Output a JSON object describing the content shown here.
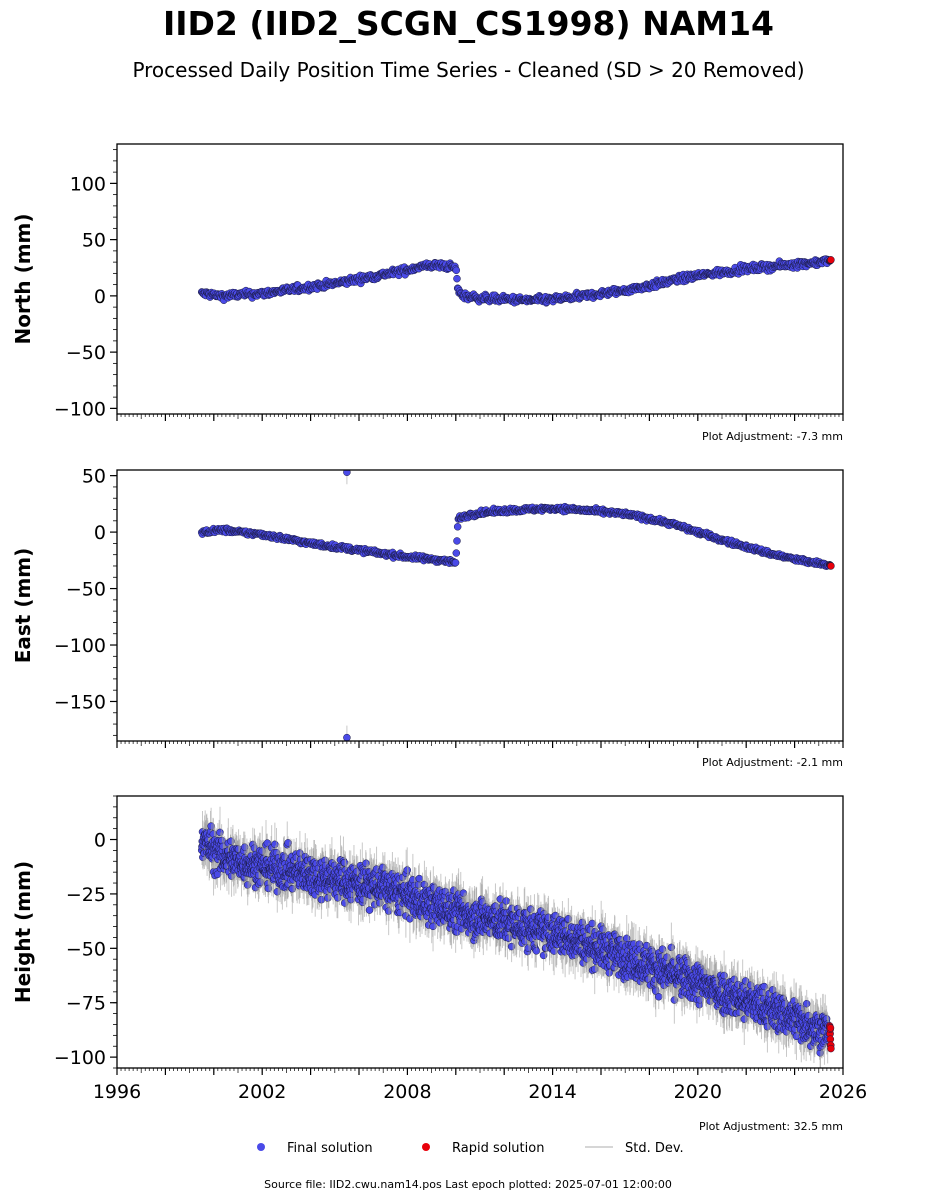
{
  "title": "IID2 (IID2_SCGN_CS1998) NAM14",
  "subtitle": "Processed Daily Position Time Series - Cleaned (SD > 20 Removed)",
  "colors": {
    "final": "#4a4ae8",
    "rapid": "#e8000b",
    "stddev": "#c8c8c8",
    "edge": "#1a1a40"
  },
  "chart_data": [
    {
      "type": "scatter",
      "ylabel": "North (mm)",
      "ylim": [
        -105,
        135
      ],
      "yticks": [
        100,
        50,
        0,
        -50,
        -100
      ],
      "ytick_labels": [
        "100",
        "50",
        "0",
        "−50",
        "−100"
      ],
      "xlim": [
        1996,
        2026
      ],
      "adjustment": "Plot Adjustment: -7.3 mm",
      "segments": [
        {
          "series": "Final solution",
          "x": [
            1999.5,
            2000.0,
            2000.1,
            2000.4,
            2001.0,
            2002.0,
            2003.0,
            2004.0,
            2005.0,
            2006.0,
            2007.0,
            2008.0,
            2008.5,
            2009.0,
            2009.5,
            2010.0,
            2010.1,
            2010.3,
            2011.0,
            2012.0,
            2013.0,
            2014.0,
            2015.0,
            2016.0,
            2017.0,
            2018.0,
            2019.0,
            2020.0,
            2021.0,
            2022.0,
            2023.0,
            2024.0,
            2025.0,
            2025.4
          ],
          "y": [
            2,
            1,
            0,
            0,
            1,
            2,
            5,
            8,
            11,
            15,
            19,
            23,
            26,
            27,
            27,
            25,
            4,
            0,
            -2,
            -3,
            -4,
            -3,
            -1,
            2,
            5,
            9,
            14,
            18,
            21,
            24,
            26,
            28,
            30,
            31
          ],
          "spread": 3
        },
        {
          "series": "Rapid solution",
          "x": [
            2025.45,
            2025.5
          ],
          "y": [
            31,
            32
          ],
          "spread": 0
        }
      ]
    },
    {
      "type": "scatter",
      "ylabel": "East (mm)",
      "ylim": [
        -185,
        55
      ],
      "yticks": [
        50,
        0,
        -50,
        -100,
        -150
      ],
      "ytick_labels": [
        "50",
        "0",
        "−50",
        "−100",
        "−150"
      ],
      "xlim": [
        1996,
        2026
      ],
      "adjustment": "Plot Adjustment: -2.1 mm",
      "segments": [
        {
          "series": "Final solution",
          "x": [
            1999.5,
            2000.0,
            2000.4,
            2001.0,
            2002.0,
            2003.0,
            2004.0,
            2005.0,
            2006.0,
            2007.0,
            2008.0,
            2009.0,
            2009.5,
            2010.0,
            2010.1,
            2010.5,
            2011.0,
            2012.0,
            2013.0,
            2014.0,
            2015.0,
            2016.0,
            2017.0,
            2018.0,
            2019.0,
            2020.0,
            2021.0,
            2022.0,
            2023.0,
            2024.0,
            2025.0,
            2025.4
          ],
          "y": [
            0,
            1,
            2,
            0,
            -2,
            -6,
            -10,
            -13,
            -16,
            -19,
            -22,
            -24,
            -25,
            -27,
            12,
            15,
            17,
            19,
            20,
            21,
            20,
            18,
            16,
            12,
            7,
            0,
            -7,
            -13,
            -19,
            -24,
            -28,
            -29
          ],
          "spread": 2
        },
        {
          "series": "Final solution",
          "x": [
            2005.5,
            2005.5
          ],
          "y": [
            53,
            -182
          ],
          "spread": 0
        },
        {
          "series": "Rapid solution",
          "x": [
            2025.45,
            2025.5
          ],
          "y": [
            -29,
            -30
          ],
          "spread": 0
        }
      ]
    },
    {
      "type": "scatter",
      "ylabel": "Height (mm)",
      "ylim": [
        -105,
        20
      ],
      "yticks": [
        0,
        -25,
        -50,
        -75,
        -100
      ],
      "ytick_labels": [
        "0",
        "−25",
        "−50",
        "−75",
        "−100"
      ],
      "xlim": [
        1996,
        2026
      ],
      "xticks": [
        1996,
        2002,
        2008,
        2014,
        2020,
        2026
      ],
      "xtick_labels": [
        "1996",
        "2002",
        "2008",
        "2014",
        "2020",
        "2026"
      ],
      "adjustment": "Plot Adjustment: 32.5 mm",
      "segments": [
        {
          "series": "Final solution",
          "x": [
            1999.5,
            2000.0,
            2000.4,
            2001.0,
            2002.0,
            2003.0,
            2004.0,
            2005.0,
            2006.0,
            2007.0,
            2008.0,
            2009.0,
            2010.0,
            2011.0,
            2012.0,
            2013.0,
            2014.0,
            2015.0,
            2016.0,
            2017.0,
            2018.0,
            2019.0,
            2020.0,
            2021.0,
            2022.0,
            2023.0,
            2024.0,
            2025.0,
            2025.4
          ],
          "y": [
            0,
            -5,
            -8,
            -10,
            -12,
            -14,
            -16,
            -18,
            -20,
            -22,
            -26,
            -30,
            -33,
            -36,
            -38,
            -41,
            -43,
            -46,
            -50,
            -54,
            -58,
            -62,
            -66,
            -70,
            -74,
            -78,
            -82,
            -87,
            -88
          ],
          "spread": 9
        },
        {
          "series": "Rapid solution",
          "x": [
            2025.45,
            2025.5
          ],
          "y": [
            -88,
            -93
          ],
          "spread": 5
        }
      ]
    }
  ],
  "legend": {
    "final_label": "Final solution",
    "rapid_label": "Rapid solution",
    "stddev_label": "Std. Dev."
  },
  "footer": "Source file: IID2.cwu.nam14.pos  Last epoch plotted: 2025-07-01 12:00:00"
}
